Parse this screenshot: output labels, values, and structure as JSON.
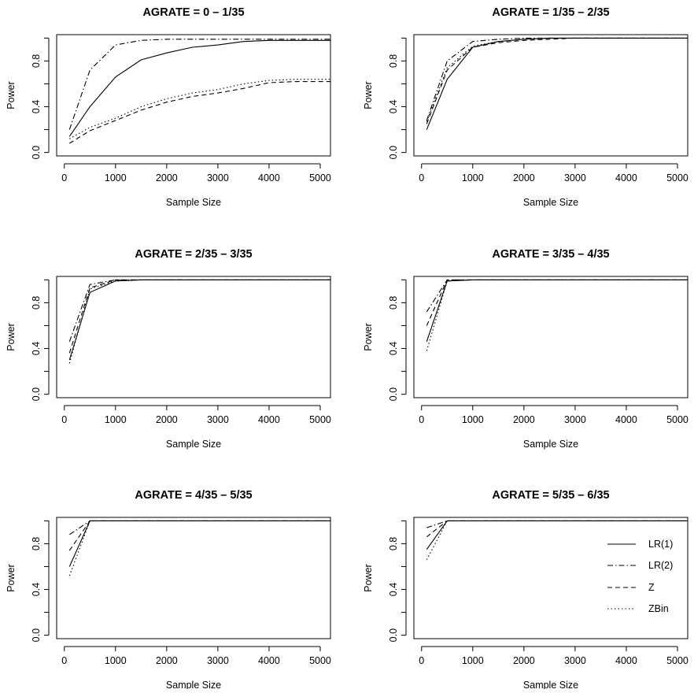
{
  "chart_data": {
    "type": "line",
    "xlabel": "Sample Size",
    "ylabel": "Power",
    "xlim": [
      0,
      5200
    ],
    "ylim": [
      0,
      1
    ],
    "x_ticks": [
      "0",
      "1000",
      "2000",
      "3000",
      "4000",
      "5000"
    ],
    "x_tick_values": [
      0,
      1000,
      2000,
      3000,
      4000,
      5000
    ],
    "y_ticks": [
      "0.0",
      "0.4",
      "0.8"
    ],
    "y_tick_values": [
      0.0,
      0.4,
      0.8
    ],
    "y_minor_tick_values": [
      0.2,
      0.6,
      1.0
    ],
    "grid": false,
    "legend_position": "right, inside last panel",
    "series_styles": [
      {
        "name": "LR(1)",
        "dash": "solid"
      },
      {
        "name": "LR(2)",
        "dash": "dash-dot"
      },
      {
        "name": "Z",
        "dash": "dashed"
      },
      {
        "name": "ZBin",
        "dash": "dotted"
      }
    ],
    "x": [
      100,
      500,
      1000,
      1500,
      2000,
      2500,
      3000,
      3500,
      4000,
      4500,
      5200
    ],
    "panels": [
      {
        "title": "AGRATE = 0 – 1/35",
        "series": [
          {
            "name": "LR(1)",
            "values": [
              0.14,
              0.4,
              0.66,
              0.81,
              0.87,
              0.92,
              0.94,
              0.97,
              0.98,
              0.98,
              0.98
            ]
          },
          {
            "name": "LR(2)",
            "values": [
              0.2,
              0.72,
              0.94,
              0.98,
              0.99,
              0.99,
              0.99,
              0.99,
              0.99,
              0.99,
              0.99
            ]
          },
          {
            "name": "Z",
            "values": [
              0.08,
              0.19,
              0.28,
              0.37,
              0.44,
              0.49,
              0.52,
              0.56,
              0.61,
              0.62,
              0.62
            ]
          },
          {
            "name": "ZBin",
            "values": [
              0.12,
              0.22,
              0.3,
              0.4,
              0.47,
              0.52,
              0.55,
              0.6,
              0.63,
              0.64,
              0.64
            ]
          }
        ]
      },
      {
        "title": "AGRATE = 1/35 – 2/35",
        "series": [
          {
            "name": "LR(1)",
            "values": [
              0.2,
              0.64,
              0.92,
              0.97,
              0.99,
              1.0,
              1.0,
              1.0,
              1.0,
              1.0,
              1.0
            ]
          },
          {
            "name": "LR(2)",
            "values": [
              0.28,
              0.8,
              0.97,
              0.99,
              1.0,
              1.0,
              1.0,
              1.0,
              1.0,
              1.0,
              1.0
            ]
          },
          {
            "name": "Z",
            "values": [
              0.25,
              0.72,
              0.92,
              0.96,
              0.98,
              0.99,
              1.0,
              1.0,
              1.0,
              1.0,
              1.0
            ]
          },
          {
            "name": "ZBin",
            "values": [
              0.27,
              0.74,
              0.93,
              0.97,
              0.99,
              1.0,
              1.0,
              1.0,
              1.0,
              1.0,
              1.0
            ]
          }
        ]
      },
      {
        "title": "AGRATE = 2/35 – 3/35",
        "series": [
          {
            "name": "LR(1)",
            "values": [
              0.3,
              0.89,
              0.99,
              1.0,
              1.0,
              1.0,
              1.0,
              1.0,
              1.0,
              1.0,
              1.0
            ]
          },
          {
            "name": "LR(2)",
            "values": [
              0.46,
              0.96,
              1.0,
              1.0,
              1.0,
              1.0,
              1.0,
              1.0,
              1.0,
              1.0,
              1.0
            ]
          },
          {
            "name": "Z",
            "values": [
              0.36,
              0.93,
              1.0,
              1.0,
              1.0,
              1.0,
              1.0,
              1.0,
              1.0,
              1.0,
              1.0
            ]
          },
          {
            "name": "ZBin",
            "values": [
              0.27,
              0.92,
              0.99,
              1.0,
              1.0,
              1.0,
              1.0,
              1.0,
              1.0,
              1.0,
              1.0
            ]
          }
        ]
      },
      {
        "title": "AGRATE = 3/35 – 4/35",
        "series": [
          {
            "name": "LR(1)",
            "values": [
              0.46,
              0.99,
              1.0,
              1.0,
              1.0,
              1.0,
              1.0,
              1.0,
              1.0,
              1.0,
              1.0
            ]
          },
          {
            "name": "LR(2)",
            "values": [
              0.72,
              1.0,
              1.0,
              1.0,
              1.0,
              1.0,
              1.0,
              1.0,
              1.0,
              1.0,
              1.0
            ]
          },
          {
            "name": "Z",
            "values": [
              0.6,
              1.0,
              1.0,
              1.0,
              1.0,
              1.0,
              1.0,
              1.0,
              1.0,
              1.0,
              1.0
            ]
          },
          {
            "name": "ZBin",
            "values": [
              0.38,
              0.99,
              1.0,
              1.0,
              1.0,
              1.0,
              1.0,
              1.0,
              1.0,
              1.0,
              1.0
            ]
          }
        ]
      },
      {
        "title": "AGRATE = 4/35 – 5/35",
        "series": [
          {
            "name": "LR(1)",
            "values": [
              0.6,
              1.0,
              1.0,
              1.0,
              1.0,
              1.0,
              1.0,
              1.0,
              1.0,
              1.0,
              1.0
            ]
          },
          {
            "name": "LR(2)",
            "values": [
              0.88,
              1.0,
              1.0,
              1.0,
              1.0,
              1.0,
              1.0,
              1.0,
              1.0,
              1.0,
              1.0
            ]
          },
          {
            "name": "Z",
            "values": [
              0.74,
              1.0,
              1.0,
              1.0,
              1.0,
              1.0,
              1.0,
              1.0,
              1.0,
              1.0,
              1.0
            ]
          },
          {
            "name": "ZBin",
            "values": [
              0.52,
              1.0,
              1.0,
              1.0,
              1.0,
              1.0,
              1.0,
              1.0,
              1.0,
              1.0,
              1.0
            ]
          }
        ]
      },
      {
        "title": "AGRATE = 5/35 – 6/35",
        "series": [
          {
            "name": "LR(1)",
            "values": [
              0.75,
              1.0,
              1.0,
              1.0,
              1.0,
              1.0,
              1.0,
              1.0,
              1.0,
              1.0,
              1.0
            ]
          },
          {
            "name": "LR(2)",
            "values": [
              0.94,
              1.0,
              1.0,
              1.0,
              1.0,
              1.0,
              1.0,
              1.0,
              1.0,
              1.0,
              1.0
            ]
          },
          {
            "name": "Z",
            "values": [
              0.86,
              1.0,
              1.0,
              1.0,
              1.0,
              1.0,
              1.0,
              1.0,
              1.0,
              1.0,
              1.0
            ]
          },
          {
            "name": "ZBin",
            "values": [
              0.66,
              1.0,
              1.0,
              1.0,
              1.0,
              1.0,
              1.0,
              1.0,
              1.0,
              1.0,
              1.0
            ]
          }
        ]
      }
    ],
    "legend": {
      "entries": [
        "LR(1)",
        "LR(2)",
        "Z",
        "ZBin"
      ]
    }
  }
}
